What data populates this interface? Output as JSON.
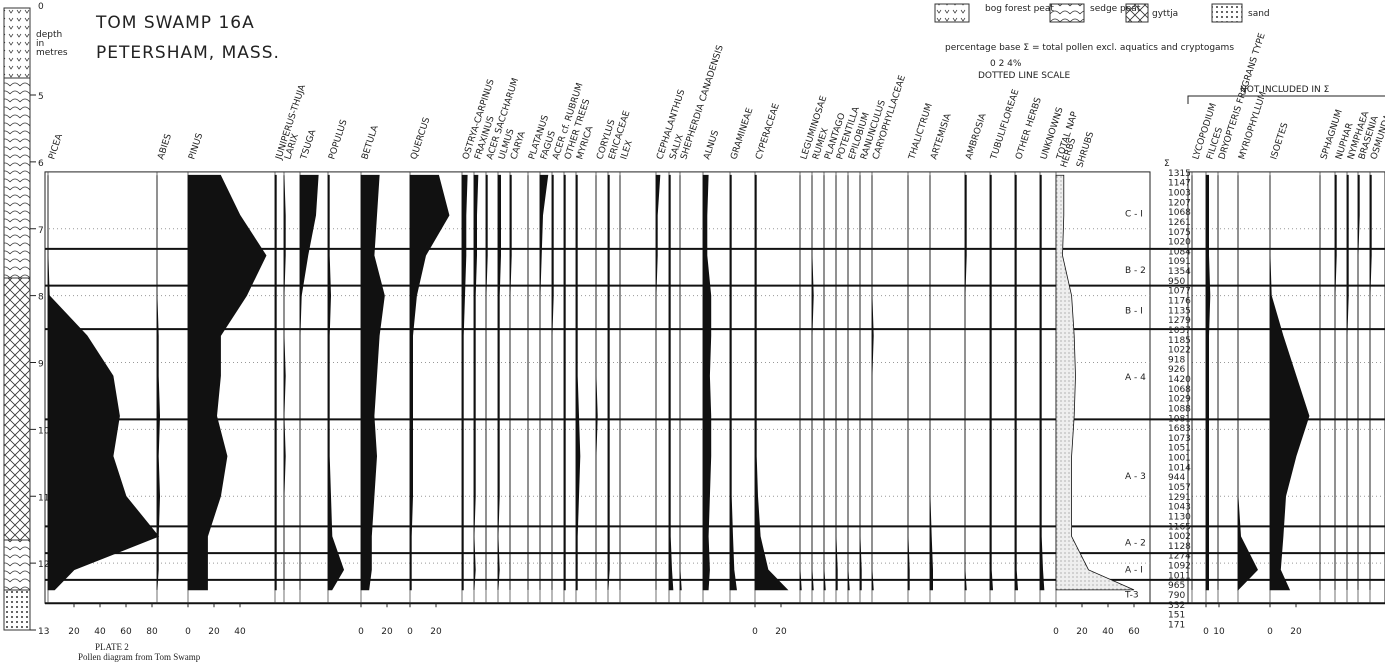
{
  "chart_data": {
    "type": "pollen",
    "title": "TOM SWAMP 16A",
    "subtitle": "PETERSHAM, MASS.",
    "depth_label": [
      "depth",
      "in",
      "metres"
    ],
    "surface_label": "0",
    "ylim": [
      5,
      13
    ],
    "yticks": [
      5,
      6,
      7,
      8,
      9,
      10,
      11,
      12,
      13
    ],
    "legend": [
      "bog forest peat",
      "sedge peat",
      "gyttja",
      "sand"
    ],
    "base_note": "percentage base Σ = total pollen excl. aquatics and cryptogams",
    "dotted_scale": "0  2  4%",
    "dotted_scale_label": "DOTTED LINE SCALE",
    "excluded_note": "NOT INCLUDED IN Σ",
    "sum_label": "Σ",
    "plate": "PLATE 2",
    "caption": "Pollen diagram from Tom Swamp",
    "nap_labels": [
      "HERBS",
      "SHRUBS"
    ],
    "depths": [
      6.2,
      6.8,
      7.4,
      8.0,
      8.6,
      9.2,
      9.8,
      10.4,
      11.0,
      11.6,
      12.1,
      12.4
    ],
    "taxa": [
      {
        "name": "PICEA",
        "values": [
          0,
          0,
          0,
          1,
          30,
          50,
          55,
          50,
          60,
          85,
          20,
          5
        ],
        "xticks": [
          20,
          40,
          60,
          80
        ]
      },
      {
        "name": "ABIES",
        "values": [
          0,
          0,
          0,
          0,
          1,
          1,
          2,
          1,
          2,
          1,
          1,
          0
        ]
      },
      {
        "name": "PINUS",
        "values": [
          25,
          40,
          60,
          45,
          25,
          25,
          22,
          30,
          25,
          15,
          15,
          15
        ],
        "xticks": [
          0,
          20,
          40
        ]
      },
      {
        "name": "JUNIPERUS-THUJA",
        "values": [
          1,
          1,
          1,
          1,
          1,
          1,
          1,
          1,
          1,
          1,
          1,
          1
        ]
      },
      {
        "name": "LARIX",
        "values": [
          0,
          1,
          1,
          0,
          0,
          1,
          0,
          1,
          0,
          0,
          0,
          0
        ]
      },
      {
        "name": "TSUGA",
        "values": [
          14,
          12,
          6,
          1,
          0,
          0,
          0,
          0,
          0,
          0,
          0,
          0
        ]
      },
      {
        "name": "POPULUS",
        "values": [
          1,
          1,
          1,
          2,
          1,
          1,
          1,
          1,
          2,
          3,
          12,
          3
        ]
      },
      {
        "name": "BETULA",
        "values": [
          14,
          12,
          10,
          18,
          14,
          12,
          10,
          12,
          10,
          8,
          8,
          6
        ],
        "xticks": [
          0,
          20
        ]
      },
      {
        "name": "QUERCUS",
        "values": [
          22,
          30,
          12,
          5,
          2,
          2,
          2,
          2,
          2,
          1,
          1,
          1
        ],
        "xticks": [
          0,
          20
        ]
      },
      {
        "name": "OSTRYA-CARPINUS",
        "values": [
          4,
          3,
          3,
          2,
          1,
          1,
          1,
          1,
          1,
          1,
          1,
          1
        ]
      },
      {
        "name": "FRAXINUS",
        "values": [
          3,
          2,
          2,
          1,
          1,
          1,
          1,
          1,
          1,
          0,
          1,
          0
        ]
      },
      {
        "name": "ACER SACCHARUM",
        "values": [
          1,
          1,
          1,
          0,
          0,
          0,
          0,
          0,
          0,
          0,
          0,
          0
        ]
      },
      {
        "name": "ULMUS",
        "values": [
          2,
          2,
          2,
          1,
          1,
          1,
          1,
          1,
          1,
          0,
          1,
          0
        ]
      },
      {
        "name": "CARYA",
        "values": [
          1,
          1,
          1,
          0,
          0,
          0,
          0,
          0,
          0,
          0,
          0,
          0
        ]
      },
      {
        "name": "PLATANUS",
        "values": [
          0,
          0,
          0,
          0,
          0,
          0,
          0,
          0,
          0,
          0,
          0,
          0
        ]
      },
      {
        "name": "FAGUS",
        "values": [
          6,
          2,
          1,
          0,
          0,
          0,
          0,
          0,
          0,
          0,
          0,
          0
        ]
      },
      {
        "name": "ACER cf. RUBRUM",
        "values": [
          1,
          1,
          1,
          1,
          0,
          0,
          0,
          0,
          0,
          0,
          0,
          0
        ]
      },
      {
        "name": "OTHER TREES",
        "values": [
          1,
          1,
          1,
          1,
          1,
          1,
          1,
          1,
          1,
          1,
          1,
          1
        ]
      },
      {
        "name": "MYRICA",
        "values": [
          1,
          1,
          1,
          1,
          1,
          1,
          2,
          3,
          2,
          1,
          1,
          1
        ]
      },
      {
        "name": "CORYLUS",
        "values": [
          0,
          0,
          0,
          0,
          0,
          0,
          1,
          0,
          0,
          0,
          0,
          0
        ]
      },
      {
        "name": "ERICACEAE",
        "values": [
          1,
          1,
          1,
          1,
          1,
          1,
          1,
          1,
          1,
          1,
          1,
          0
        ]
      },
      {
        "name": "ILEX",
        "values": [
          0,
          0,
          0,
          0,
          0,
          0,
          0,
          0,
          0,
          0,
          0,
          0
        ]
      },
      {
        "name": "CEPHALANTHUS",
        "values": [
          3,
          1,
          1,
          0,
          0,
          0,
          0,
          0,
          0,
          0,
          0,
          0
        ]
      },
      {
        "name": "SALIX",
        "values": [
          1,
          1,
          1,
          1,
          1,
          1,
          1,
          1,
          1,
          1,
          2,
          3
        ]
      },
      {
        "name": "SHEPHERDIA CANADENSIS",
        "values": [
          0,
          0,
          0,
          0,
          0,
          0,
          0,
          0,
          0,
          0,
          0,
          1
        ]
      },
      {
        "name": "ALNUS",
        "values": [
          4,
          3,
          3,
          6,
          6,
          5,
          6,
          6,
          5,
          4,
          5,
          4
        ]
      },
      {
        "name": "GRAMINEAE",
        "values": [
          1,
          1,
          1,
          1,
          1,
          1,
          1,
          1,
          1,
          2,
          3,
          5
        ]
      },
      {
        "name": "CYPERACEAE",
        "values": [
          1,
          1,
          1,
          1,
          1,
          1,
          1,
          1,
          2,
          4,
          10,
          25
        ],
        "xticks": [
          0,
          20
        ]
      },
      {
        "name": "LEGUMINOSAE",
        "values": [
          0,
          0,
          0,
          0,
          0,
          0,
          0,
          0,
          0,
          0,
          0,
          1
        ]
      },
      {
        "name": "RUMEX",
        "values": [
          0,
          0,
          0,
          1,
          0,
          0,
          0,
          0,
          0,
          0,
          0,
          1
        ]
      },
      {
        "name": "PLANTAGO",
        "values": [
          0,
          0,
          0,
          0,
          0,
          0,
          0,
          0,
          0,
          0,
          0,
          1
        ]
      },
      {
        "name": "POTENTILLA",
        "values": [
          0,
          0,
          0,
          0,
          0,
          0,
          0,
          0,
          0,
          0,
          1,
          1
        ]
      },
      {
        "name": "EPILOBIUM",
        "values": [
          0,
          0,
          0,
          0,
          0,
          0,
          0,
          0,
          0,
          0,
          0,
          1
        ]
      },
      {
        "name": "RANUNCULUS",
        "values": [
          0,
          0,
          0,
          0,
          0,
          0,
          0,
          0,
          0,
          0,
          1,
          1
        ]
      },
      {
        "name": "CARYOPHYLLACEAE",
        "values": [
          0,
          0,
          0,
          0,
          1,
          0,
          0,
          0,
          0,
          0,
          0,
          1
        ]
      },
      {
        "name": "THALICTRUM",
        "values": [
          0,
          0,
          0,
          0,
          0,
          0,
          0,
          0,
          0,
          0,
          1,
          1
        ]
      },
      {
        "name": "ARTEMISIA",
        "values": [
          0,
          0,
          0,
          0,
          0,
          0,
          0,
          0,
          0,
          1,
          2,
          2
        ]
      },
      {
        "name": "AMBROSIA",
        "values": [
          1,
          1,
          1,
          0,
          0,
          0,
          0,
          0,
          0,
          0,
          0,
          1
        ]
      },
      {
        "name": "TUBULIFLOREAE",
        "values": [
          1,
          1,
          1,
          1,
          1,
          1,
          1,
          1,
          1,
          1,
          1,
          2
        ]
      },
      {
        "name": "OTHER HERBS",
        "values": [
          1,
          1,
          1,
          1,
          1,
          1,
          1,
          1,
          1,
          1,
          1,
          2
        ]
      },
      {
        "name": "UNKNOWNS",
        "values": [
          1,
          1,
          1,
          1,
          1,
          1,
          1,
          1,
          1,
          1,
          2,
          3
        ]
      },
      {
        "name": "TOTAL NAP",
        "values": [
          6,
          6,
          5,
          12,
          14,
          15,
          14,
          12,
          12,
          12,
          25,
          60
        ],
        "xticks": [
          0,
          20,
          40,
          60
        ]
      },
      {
        "name": "LYCOPODIUM",
        "values": [
          0,
          0,
          0,
          0,
          0,
          0,
          0,
          0,
          0,
          0,
          0,
          0
        ],
        "excluded": true
      },
      {
        "name": "FILICES",
        "values": [
          2,
          2,
          2,
          3,
          2,
          2,
          2,
          2,
          2,
          2,
          2,
          2
        ],
        "excluded": true,
        "xticks": [
          0,
          10
        ]
      },
      {
        "name": "DRYOPTERIS FRAGRANS TYPE",
        "values": [
          0,
          0,
          0,
          0,
          0,
          0,
          0,
          0,
          0,
          0,
          0,
          0
        ],
        "excluded": true
      },
      {
        "name": "MYRIOPHYLLUM",
        "values": [
          0,
          0,
          0,
          0,
          0,
          0,
          0,
          0,
          0,
          2,
          15,
          0
        ],
        "excluded": true
      },
      {
        "name": "ISOETES",
        "values": [
          0,
          0,
          0,
          1,
          10,
          20,
          30,
          20,
          12,
          10,
          8,
          15
        ],
        "excluded": true,
        "xticks": [
          0,
          20
        ]
      },
      {
        "name": "SPHAGNUM",
        "values": [
          0,
          0,
          0,
          0,
          0,
          0,
          0,
          0,
          0,
          0,
          0,
          0
        ],
        "excluded": true
      },
      {
        "name": "NUPHAR",
        "values": [
          1,
          1,
          1,
          0,
          0,
          0,
          0,
          0,
          0,
          0,
          0,
          0
        ],
        "excluded": true
      },
      {
        "name": "NYMPHAEA",
        "values": [
          1,
          1,
          1,
          1,
          0,
          0,
          0,
          0,
          0,
          0,
          0,
          0
        ],
        "excluded": true
      },
      {
        "name": "BRASENIA",
        "values": [
          1,
          1,
          0,
          0,
          0,
          0,
          0,
          0,
          0,
          0,
          0,
          0
        ],
        "excluded": true
      },
      {
        "name": "OSMUNDA",
        "values": [
          1,
          1,
          1,
          0,
          0,
          0,
          0,
          0,
          0,
          0,
          0,
          0
        ],
        "excluded": true
      }
    ],
    "zones": [
      {
        "label": "C - I",
        "top": 6.15,
        "bottom": 7.3
      },
      {
        "label": "B - 2",
        "top": 7.3,
        "bottom": 7.85
      },
      {
        "label": "B - I",
        "top": 7.85,
        "bottom": 8.5
      },
      {
        "label": "A - 4",
        "top": 8.5,
        "bottom": 9.85
      },
      {
        "label": "A - 3",
        "top": 9.85,
        "bottom": 11.45
      },
      {
        "label": "A - 2",
        "top": 11.45,
        "bottom": 11.85
      },
      {
        "label": "A - I",
        "top": 11.85,
        "bottom": 12.25
      },
      {
        "label": "T-3",
        "top": 12.25,
        "bottom": 12.6
      }
    ],
    "sums": [
      1315,
      1147,
      1003,
      1207,
      1068,
      1261,
      1075,
      1020,
      1084,
      1091,
      1354,
      950,
      1077,
      1176,
      1135,
      1279,
      1037,
      1185,
      1022,
      918,
      926,
      1420,
      1068,
      1029,
      1088,
      1081,
      1683,
      1073,
      1051,
      1001,
      1014,
      944,
      1057,
      1291,
      1043,
      1130,
      1165,
      1002,
      1128,
      1274,
      1092,
      1011,
      965,
      790,
      332,
      151,
      171
    ]
  }
}
